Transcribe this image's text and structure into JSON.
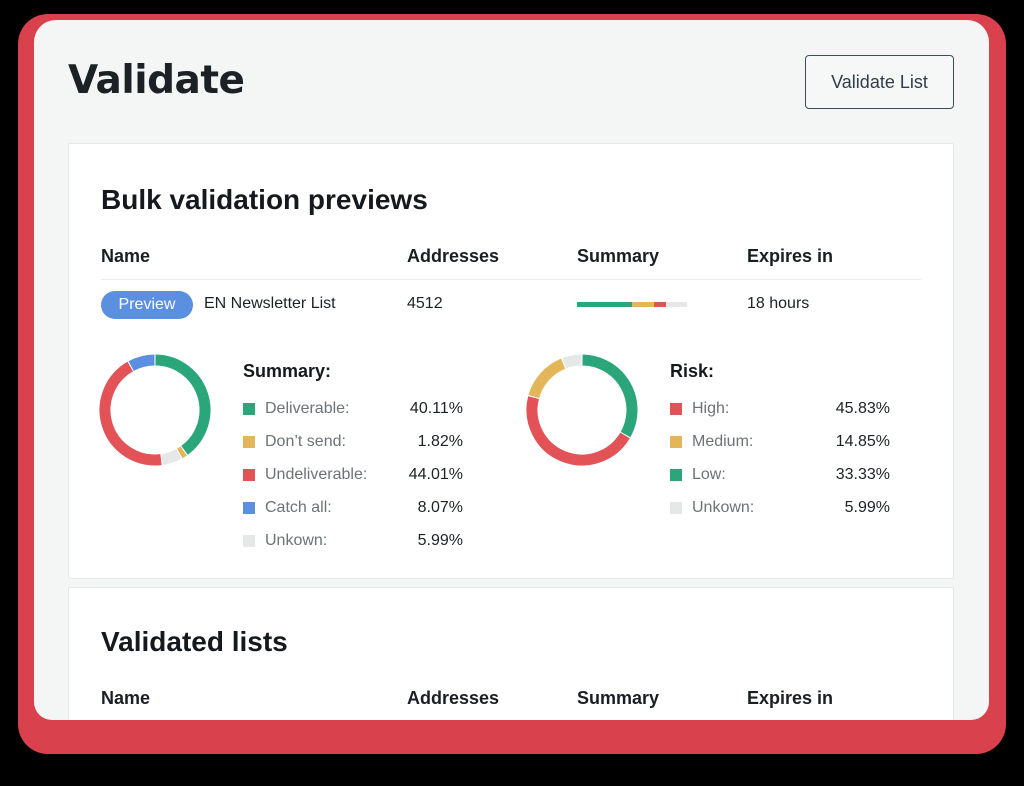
{
  "header": {
    "title": "Validate",
    "validate_button": "Validate List"
  },
  "previews": {
    "title": "Bulk validation previews",
    "columns": [
      "Name",
      "Addresses",
      "Summary",
      "Expires in"
    ],
    "rows": [
      {
        "badge": "Preview",
        "name": "EN Newsletter List",
        "addresses": "4512",
        "expires": "18 hours",
        "summary_bar": [
          {
            "color": "#2ba57a",
            "pct": 50
          },
          {
            "color": "#e2b659",
            "pct": 20
          },
          {
            "color": "#e35257",
            "pct": 11
          },
          {
            "color": "#e6e8e8",
            "pct": 19
          }
        ]
      }
    ],
    "summary": {
      "title": "Summary:",
      "items": [
        {
          "label": "Deliverable:",
          "value": "40.11%",
          "color": "#2ba57a"
        },
        {
          "label": "Don’t send:",
          "value": "1.82%",
          "color": "#e2b659"
        },
        {
          "label": "Undeliverable:",
          "value": "44.01%",
          "color": "#e35257"
        },
        {
          "label": "Catch all:",
          "value": "8.07%",
          "color": "#5b8fe0"
        },
        {
          "label": "Unkown:",
          "value": "5.99%",
          "color": "#e6e8e8"
        }
      ]
    },
    "risk": {
      "title": "Risk:",
      "items": [
        {
          "label": "High:",
          "value": "45.83%",
          "color": "#e35257"
        },
        {
          "label": "Medium:",
          "value": "14.85%",
          "color": "#e2b659"
        },
        {
          "label": "Low:",
          "value": "33.33%",
          "color": "#2ba57a"
        },
        {
          "label": "Unkown:",
          "value": "5.99%",
          "color": "#e6e8e8"
        }
      ]
    }
  },
  "validated": {
    "title": "Validated lists",
    "columns": [
      "Name",
      "Addresses",
      "Summary",
      "Expires in"
    ]
  },
  "chart_data": [
    {
      "type": "pie",
      "title": "Summary:",
      "categories": [
        "Deliverable",
        "Don't send",
        "Undeliverable",
        "Catch all",
        "Unkown"
      ],
      "values": [
        40.11,
        1.82,
        44.01,
        8.07,
        5.99
      ],
      "colors": [
        "#2ba57a",
        "#e2b659",
        "#e35257",
        "#5b8fe0",
        "#e6e8e8"
      ],
      "donut": true,
      "legend_position": "right"
    },
    {
      "type": "pie",
      "title": "Risk:",
      "categories": [
        "High",
        "Medium",
        "Low",
        "Unkown"
      ],
      "values": [
        45.83,
        14.85,
        33.33,
        5.99
      ],
      "colors": [
        "#e35257",
        "#e2b659",
        "#2ba57a",
        "#e6e8e8"
      ],
      "donut": true,
      "legend_position": "right"
    }
  ]
}
